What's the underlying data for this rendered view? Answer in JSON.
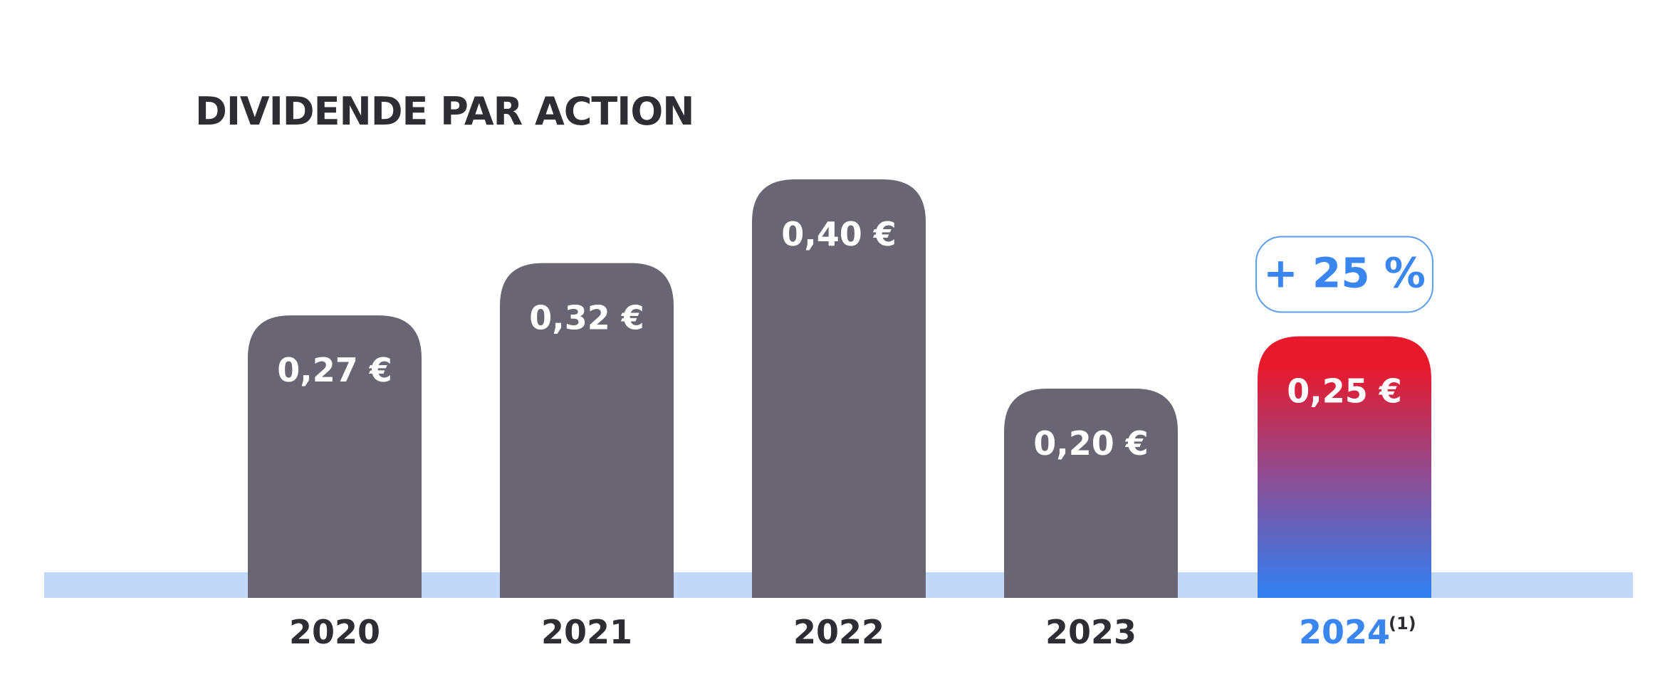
{
  "chart_data": {
    "type": "bar",
    "title": "DIVIDENDE PAR ACTION",
    "categories": [
      "2020",
      "2021",
      "2022",
      "2023",
      "2024"
    ],
    "category_notes": [
      "",
      "",
      "",
      "",
      "(1)"
    ],
    "values": [
      0.27,
      0.32,
      0.4,
      0.2,
      0.25
    ],
    "value_labels": [
      "0,27 €",
      "0,32 €",
      "0,40 €",
      "0,20 €",
      "0,25 €"
    ],
    "highlight_index": 4,
    "highlight_badge": "+ 25 %",
    "xlabel": "",
    "ylabel": "",
    "ylim": [
      0,
      0.42
    ],
    "grid": false,
    "legend": "none"
  },
  "colors": {
    "bar": "#6a6572",
    "highlight_top": "#e8192c",
    "highlight_mid": "#8a4f96",
    "highlight_bottom": "#2f80f4",
    "baseline": "#c2d8f8",
    "accent": "#3a86f0",
    "title": "#2d2d33",
    "axis_label": "#2d2d33",
    "value_label": "#ffffff",
    "badge_border": "#5b9cf2"
  }
}
